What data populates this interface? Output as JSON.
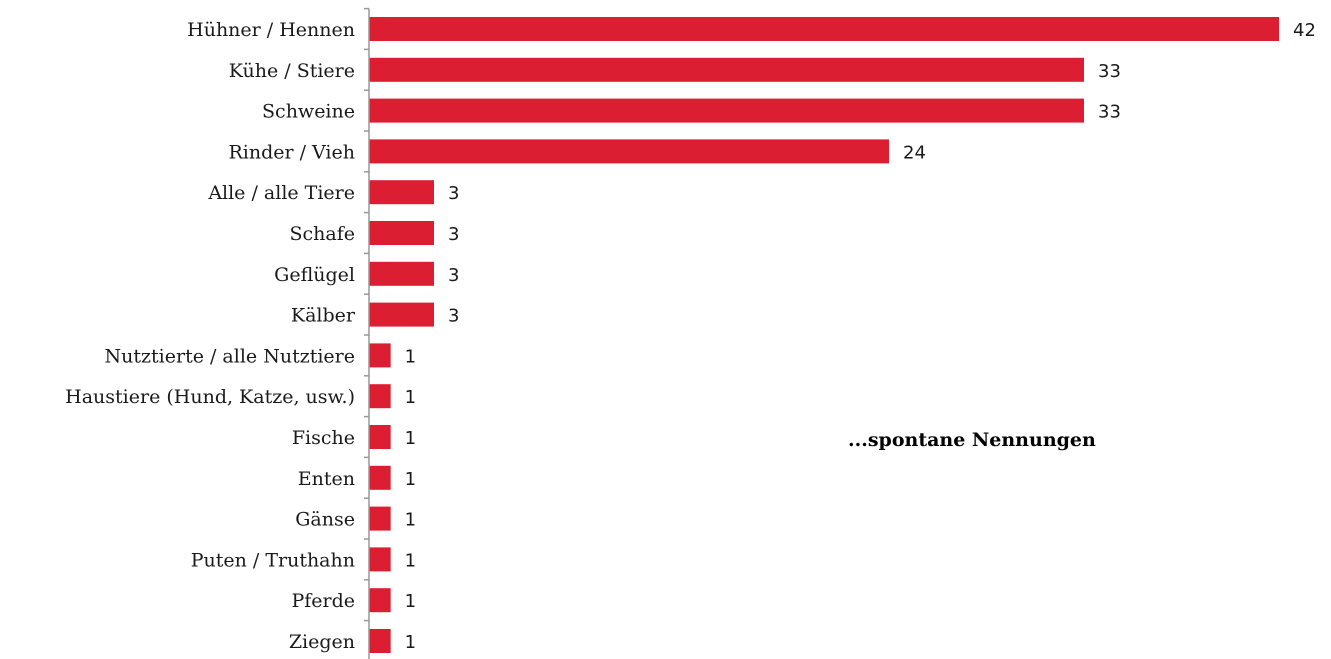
{
  "chart_data": {
    "type": "bar",
    "orientation": "horizontal",
    "categories": [
      "Hühner / Hennen",
      "Kühe / Stiere",
      "Schweine",
      "Rinder / Vieh",
      "Alle / alle Tiere",
      "Schafe",
      "Geflügel",
      "Kälber",
      "Nutztierte / alle Nutztiere",
      "Haustiere (Hund, Katze, usw.)",
      "Fische",
      "Enten",
      "Gänse",
      "Puten / Truthahn",
      "Pferde",
      "Ziegen"
    ],
    "values": [
      42,
      33,
      33,
      24,
      3,
      3,
      3,
      3,
      1,
      1,
      1,
      1,
      1,
      1,
      1,
      1
    ],
    "annotation": "...spontane Nennungen",
    "xlim": [
      0,
      42
    ],
    "grid": false,
    "legend": "none",
    "bar_color": "#dc1e32",
    "axis_color": "#999999"
  }
}
